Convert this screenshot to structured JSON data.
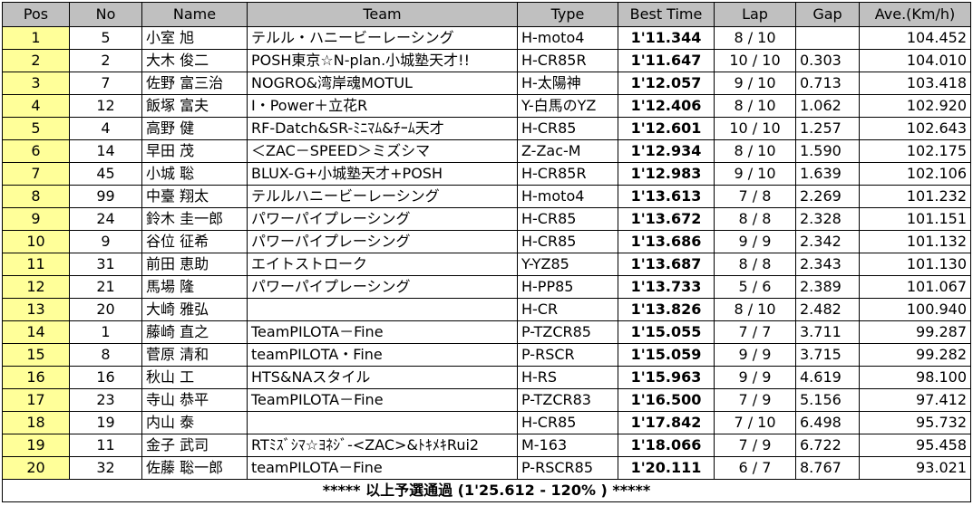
{
  "headers": {
    "pos": "Pos",
    "no": "No",
    "name": "Name",
    "team": "Team",
    "type": "Type",
    "best": "Best Time",
    "lap": "Lap",
    "gap": "Gap",
    "ave": "Ave.(Km/h)"
  },
  "rows": [
    {
      "pos": "1",
      "no": "5",
      "name": "小室 旭",
      "team": "テルル・ハニービーレーシング",
      "type": "H-moto4",
      "best": "1'11.344",
      "lap": "8 / 10",
      "gap": "",
      "ave": "104.452"
    },
    {
      "pos": "2",
      "no": "2",
      "name": "大木 俊二",
      "team": "POSH東京☆N-plan.小城塾天才!!",
      "type": "H-CR85R",
      "best": "1'11.647",
      "lap": "10 / 10",
      "gap": "0.303",
      "ave": "104.010"
    },
    {
      "pos": "3",
      "no": "7",
      "name": "佐野 富三治",
      "team": "NOGRO&湾岸魂MOTUL",
      "type": "H-太陽神",
      "best": "1'12.057",
      "lap": "9 / 10",
      "gap": "0.713",
      "ave": "103.418"
    },
    {
      "pos": "4",
      "no": "12",
      "name": "飯塚 富夫",
      "team": "I・Power＋立花R",
      "type": "Y-白馬のYZ",
      "best": "1'12.406",
      "lap": "8 / 10",
      "gap": "1.062",
      "ave": "102.920"
    },
    {
      "pos": "5",
      "no": "4",
      "name": "高野 健",
      "team": "RF-Datch&SR-ﾐﾆﾏﾑ&ﾁｰﾑ天才",
      "type": "H-CR85",
      "best": "1'12.601",
      "lap": "10 / 10",
      "gap": "1.257",
      "ave": "102.643"
    },
    {
      "pos": "6",
      "no": "14",
      "name": "早田 茂",
      "team": "＜ZAC－SPEED＞ミズシマ",
      "type": "Z-Zac-M",
      "best": "1'12.934",
      "lap": "8 / 10",
      "gap": "1.590",
      "ave": "102.175"
    },
    {
      "pos": "7",
      "no": "45",
      "name": "小城 聡",
      "team": "BLUX-G+小城塾天才+POSH",
      "type": "H-CR85R",
      "best": "1'12.983",
      "lap": "9 / 10",
      "gap": "1.639",
      "ave": "102.106"
    },
    {
      "pos": "8",
      "no": "99",
      "name": "中臺 翔太",
      "team": "テルルハニービーレーシング",
      "type": "H-moto4",
      "best": "1'13.613",
      "lap": "7 / 8",
      "gap": "2.269",
      "ave": "101.232"
    },
    {
      "pos": "9",
      "no": "24",
      "name": "鈴木 圭一郎",
      "team": "パワーパイプレーシング",
      "type": "H-CR85",
      "best": "1'13.672",
      "lap": "8 / 8",
      "gap": "2.328",
      "ave": "101.151"
    },
    {
      "pos": "10",
      "no": "9",
      "name": "谷位 征希",
      "team": "パワーパイプレーシング",
      "type": "H-CR85",
      "best": "1'13.686",
      "lap": "9 / 9",
      "gap": "2.342",
      "ave": "101.132"
    },
    {
      "pos": "11",
      "no": "31",
      "name": "前田 恵助",
      "team": "エイトストローク",
      "type": "Y-YZ85",
      "best": "1'13.687",
      "lap": "8 / 8",
      "gap": "2.343",
      "ave": "101.130"
    },
    {
      "pos": "12",
      "no": "21",
      "name": "馬場 隆",
      "team": "パワーパイプレーシング",
      "type": "H-PP85",
      "best": "1'13.733",
      "lap": "5 / 6",
      "gap": "2.389",
      "ave": "101.067"
    },
    {
      "pos": "13",
      "no": "20",
      "name": "大崎 雅弘",
      "team": "",
      "type": "H-CR",
      "best": "1'13.826",
      "lap": "8 / 10",
      "gap": "2.482",
      "ave": "100.940"
    },
    {
      "pos": "14",
      "no": "1",
      "name": "藤崎 直之",
      "team": "TeamPILOTA－Fine",
      "type": "P-TZCR85",
      "best": "1'15.055",
      "lap": "7 / 7",
      "gap": "3.711",
      "ave": "99.287"
    },
    {
      "pos": "15",
      "no": "8",
      "name": "菅原 清和",
      "team": "teamPILOTA・Fine",
      "type": "P-RSCR",
      "best": "1'15.059",
      "lap": "9 / 9",
      "gap": "3.715",
      "ave": "99.282"
    },
    {
      "pos": "16",
      "no": "16",
      "name": "秋山 工",
      "team": "HTS&NAスタイル",
      "type": "H-RS",
      "best": "1'15.963",
      "lap": "9 / 9",
      "gap": "4.619",
      "ave": "98.100"
    },
    {
      "pos": "17",
      "no": "23",
      "name": "寺山 恭平",
      "team": "TeamPILOTA－Fine",
      "type": "P-TZCR83",
      "best": "1'16.500",
      "lap": "7 / 9",
      "gap": "5.156",
      "ave": "97.412"
    },
    {
      "pos": "18",
      "no": "19",
      "name": "内山 泰",
      "team": "",
      "type": "H-CR85",
      "best": "1'17.842",
      "lap": "7 / 10",
      "gap": "6.498",
      "ave": "95.732"
    },
    {
      "pos": "19",
      "no": "11",
      "name": "金子 武司",
      "team": "RTﾐｽﾞｼﾏ☆ﾖﾈｼﾞ-<ZAC>&ﾄｷﾒｷRui2",
      "type": "M-163",
      "best": "1'18.066",
      "lap": "7 / 9",
      "gap": "6.722",
      "ave": "95.458"
    },
    {
      "pos": "20",
      "no": "32",
      "name": "佐藤 聡一郎",
      "team": "teamPILOTA－Fine",
      "type": "P-RSCR85",
      "best": "1'20.111",
      "lap": "6 / 7",
      "gap": "8.767",
      "ave": "93.021"
    }
  ],
  "footer": "***** 以上予選通過 (1'25.612 - 120% ) *****",
  "colors": {
    "pos_bg": "#ffff99",
    "header_bg": "#c0c0c0"
  }
}
